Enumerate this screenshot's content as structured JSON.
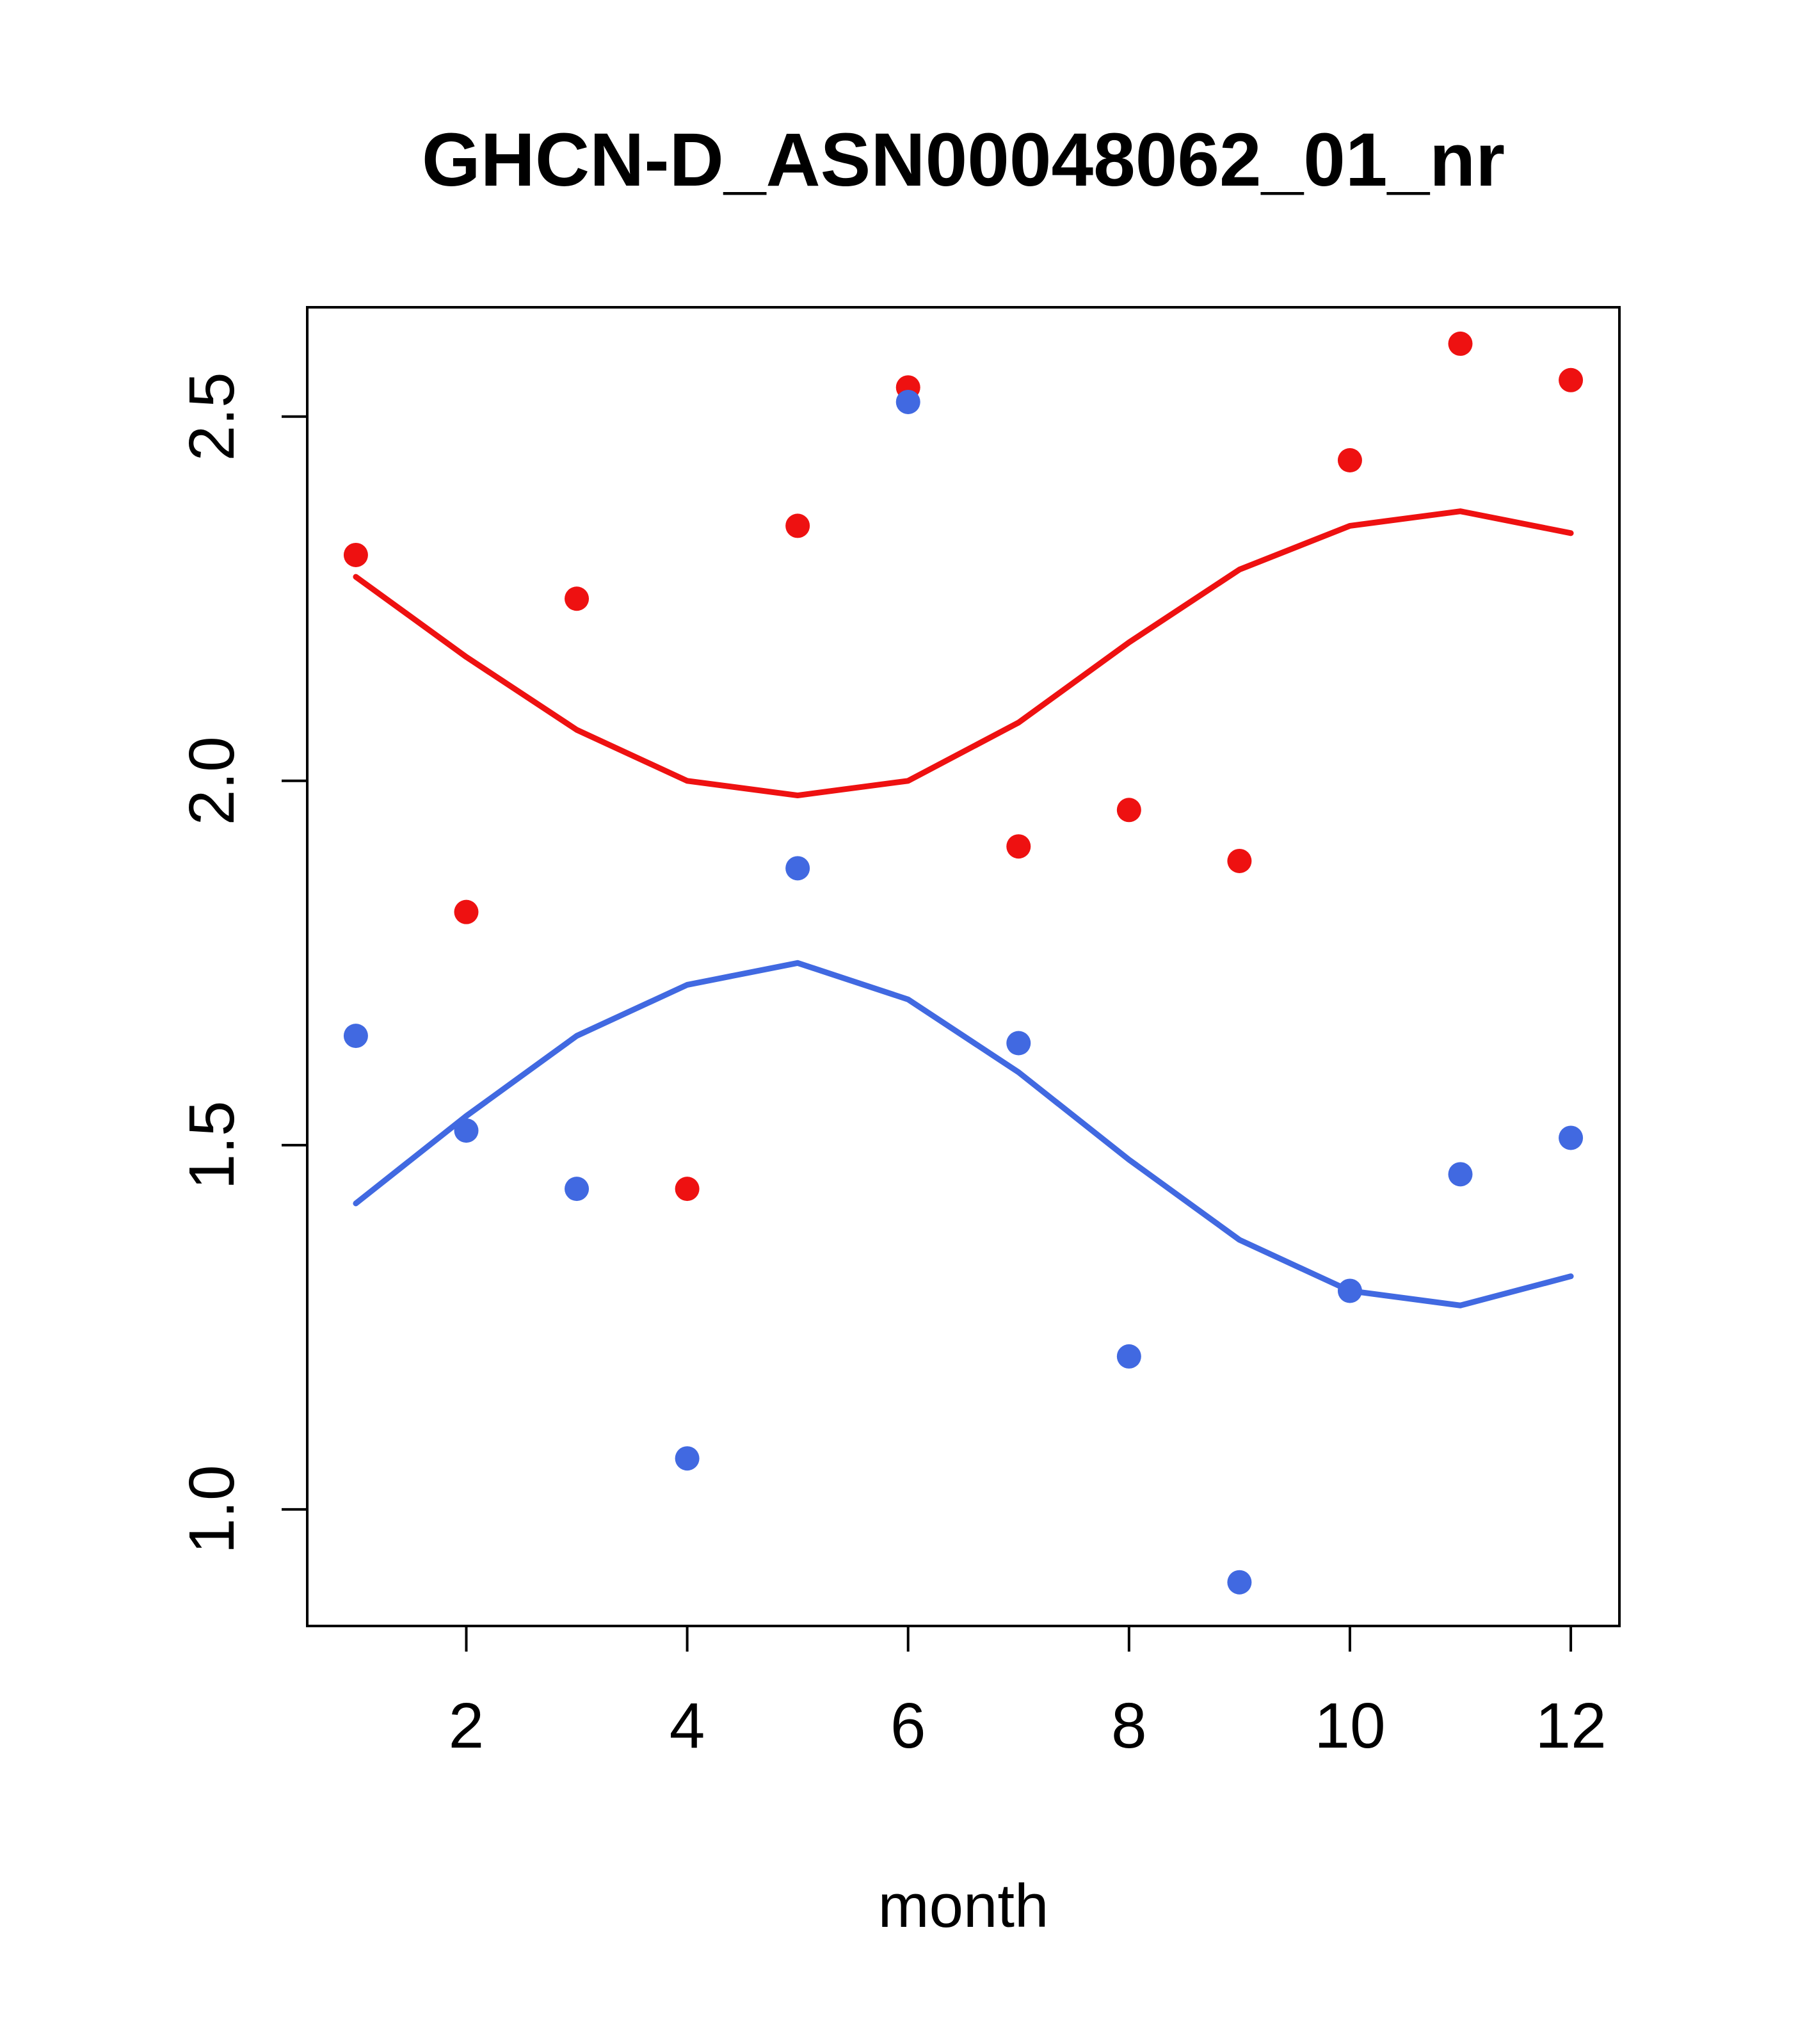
{
  "chart_data": {
    "type": "scatter",
    "title": "GHCN-D_ASN00048062_01_nr",
    "xlabel": "month",
    "ylabel": "",
    "xlim": [
      0.56,
      12.44
    ],
    "ylim": [
      0.84,
      2.65
    ],
    "grid": false,
    "legend": "none",
    "x_ticks": {
      "values": [
        2,
        4,
        6,
        8,
        10,
        12
      ],
      "labels": [
        "2",
        "4",
        "6",
        "8",
        "10",
        "12"
      ]
    },
    "y_ticks": {
      "values": [
        1.0,
        1.5,
        2.0,
        2.5
      ],
      "labels": [
        "1.0",
        "1.5",
        "2.0",
        "2.5"
      ]
    },
    "x": [
      1,
      2,
      3,
      4,
      5,
      6,
      7,
      8,
      9,
      10,
      11,
      12
    ],
    "series": [
      {
        "name": "red-points",
        "kind": "points",
        "color": "#EE1111",
        "values": [
          2.31,
          1.82,
          2.25,
          1.44,
          2.35,
          2.54,
          1.91,
          1.96,
          1.89,
          2.44,
          2.6,
          2.55
        ]
      },
      {
        "name": "blue-points",
        "kind": "points",
        "color": "#4169E1",
        "values": [
          1.65,
          1.52,
          1.44,
          1.07,
          1.88,
          2.52,
          1.64,
          1.21,
          0.9,
          1.3,
          1.46,
          1.51
        ]
      },
      {
        "name": "red-smooth-line",
        "kind": "line",
        "color": "#EE1111",
        "values": [
          2.28,
          2.17,
          2.07,
          2.0,
          1.98,
          2.0,
          2.08,
          2.19,
          2.29,
          2.35,
          2.37,
          2.34
        ]
      },
      {
        "name": "blue-smooth-line",
        "kind": "line",
        "color": "#4169E1",
        "values": [
          1.42,
          1.54,
          1.65,
          1.72,
          1.75,
          1.7,
          1.6,
          1.48,
          1.37,
          1.3,
          1.28,
          1.32
        ]
      }
    ]
  }
}
